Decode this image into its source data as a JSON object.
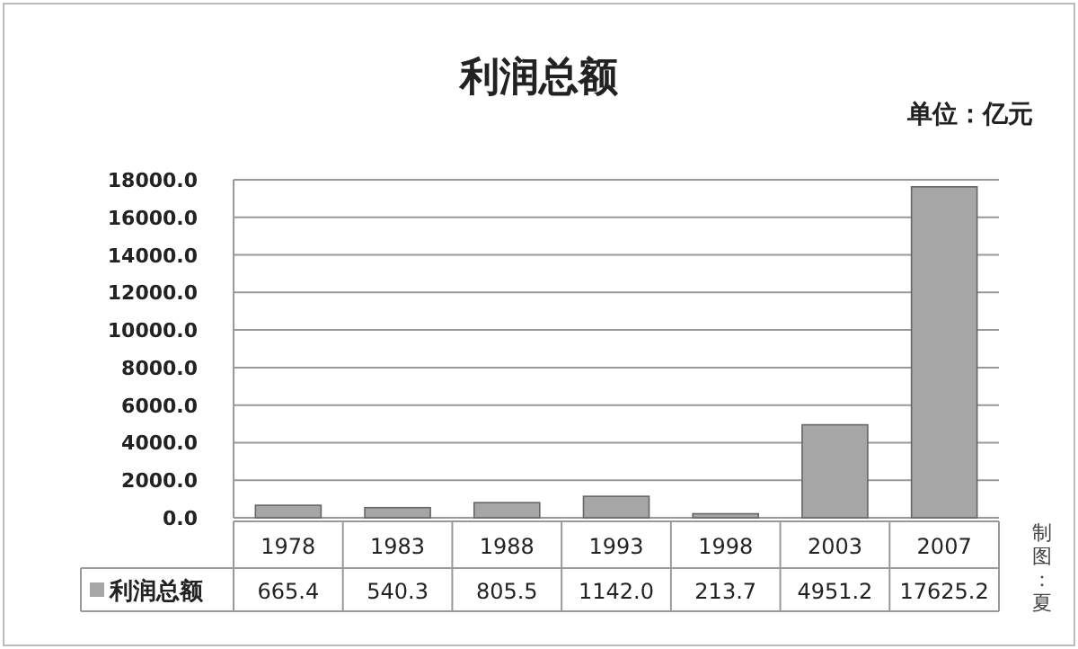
{
  "chart_data": {
    "type": "bar",
    "title": "利润总额",
    "subtitle": "单位：亿元",
    "categories": [
      "1978",
      "1983",
      "1988",
      "1993",
      "1998",
      "2003",
      "2007"
    ],
    "series": [
      {
        "name": "利润总额",
        "color": "#a6a6a6",
        "values": [
          665.4,
          540.3,
          805.5,
          1142,
          213.7,
          4951.2,
          17625.2
        ],
        "value_labels": [
          "665.4",
          "540.3",
          "805.5",
          "1142.0",
          "213.7",
          "4951.2",
          "17625.2"
        ]
      }
    ],
    "ylim": [
      0,
      18000
    ],
    "yticks": [
      {
        "value": 0,
        "label": "0.0"
      },
      {
        "value": 2000,
        "label": "2000.0"
      },
      {
        "value": 4000,
        "label": "4000.0"
      },
      {
        "value": 6000,
        "label": "6000.0"
      },
      {
        "value": 8000,
        "label": "8000.0"
      },
      {
        "value": 10000,
        "label": "10000.0"
      },
      {
        "value": 12000,
        "label": "12000.0"
      },
      {
        "value": 14000,
        "label": "14000.0"
      },
      {
        "value": 16000,
        "label": "16000.0"
      },
      {
        "value": 18000,
        "label": "18000.0"
      }
    ],
    "grid": "y",
    "legend": "bottom",
    "annotations": [
      "制图：夏"
    ]
  }
}
